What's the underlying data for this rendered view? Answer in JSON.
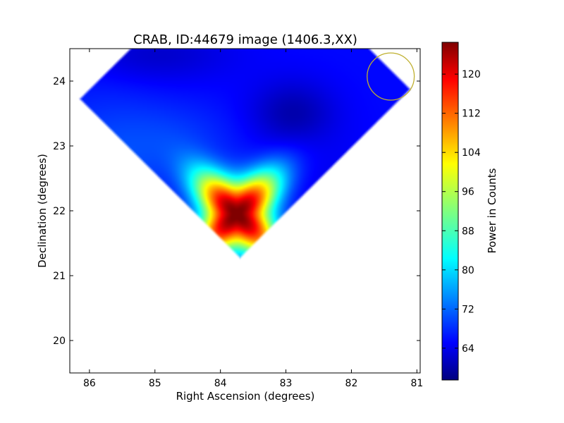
{
  "chart_data": {
    "type": "heatmap",
    "title": "CRAB, ID:44679 image (1406.3,XX)",
    "xlabel": "Right Ascension (degrees)",
    "ylabel": "Declination (degrees)",
    "xlim": [
      86.3,
      80.95
    ],
    "ylim": [
      19.5,
      24.5
    ],
    "x_ticks": [
      86,
      85,
      84,
      83,
      82,
      81
    ],
    "y_ticks": [
      20,
      21,
      22,
      23,
      24
    ],
    "colorbar": {
      "label": "Power in Counts",
      "range": [
        57.5,
        126.5
      ],
      "ticks": [
        64,
        72,
        80,
        88,
        96,
        104,
        112,
        120
      ],
      "colormap": "jet"
    },
    "source": {
      "ra": 83.75,
      "dec": 21.95,
      "peak": 126
    },
    "beam_circle": {
      "ra": 81.4,
      "dec": 24.07,
      "radius_deg": 0.36,
      "color": "#bfb030"
    },
    "grid": false,
    "colorbar_placement": "right"
  }
}
